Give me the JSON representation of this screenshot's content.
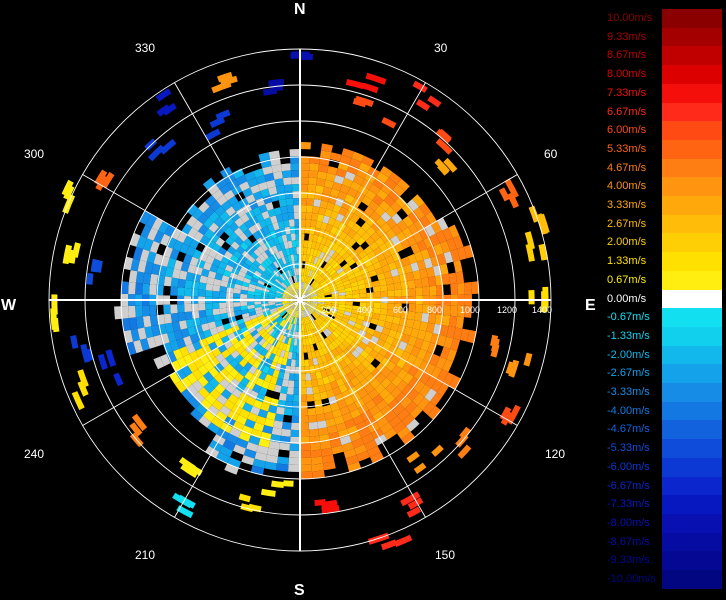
{
  "compass": {
    "n": "N",
    "e": "E",
    "s": "S",
    "w": "W"
  },
  "bearings": {
    "b30": "30",
    "b60": "60",
    "b120": "120",
    "b150": "150",
    "b210": "210",
    "b240": "240",
    "b300": "300",
    "b330": "330"
  },
  "range_labels": [
    "200",
    "400",
    "600",
    "800",
    "1000",
    "1200",
    "1400"
  ],
  "legend": [
    {
      "label": "10.00m/s",
      "color": "#8a0000"
    },
    {
      "label": "9.33m/s",
      "color": "#a50000"
    },
    {
      "label": "8.67m/s",
      "color": "#c00000"
    },
    {
      "label": "8.00m/s",
      "color": "#dc0000"
    },
    {
      "label": "7.33m/s",
      "color": "#f50f0a"
    },
    {
      "label": "6.67m/s",
      "color": "#ff2a1a"
    },
    {
      "label": "6.00m/s",
      "color": "#ff4a14"
    },
    {
      "label": "5.33m/s",
      "color": "#ff6412"
    },
    {
      "label": "4.67m/s",
      "color": "#ff7e14"
    },
    {
      "label": "4.00m/s",
      "color": "#ff9410"
    },
    {
      "label": "3.33m/s",
      "color": "#ffa80c"
    },
    {
      "label": "2.67m/s",
      "color": "#ffbc08"
    },
    {
      "label": "2.00m/s",
      "color": "#ffcf06"
    },
    {
      "label": "1.33m/s",
      "color": "#ffe000"
    },
    {
      "label": "0.67m/s",
      "color": "#ffee10"
    },
    {
      "label": "0.00m/s",
      "color": "#ffffff"
    },
    {
      "label": "-0.67m/s",
      "color": "#12e0f0"
    },
    {
      "label": "-1.33m/s",
      "color": "#10d0ee"
    },
    {
      "label": "-2.00m/s",
      "color": "#12b8ec"
    },
    {
      "label": "-2.67m/s",
      "color": "#14a2ea"
    },
    {
      "label": "-3.33m/s",
      "color": "#168ce6"
    },
    {
      "label": "-4.00m/s",
      "color": "#1478e2"
    },
    {
      "label": "-4.67m/s",
      "color": "#1262de"
    },
    {
      "label": "-5.33m/s",
      "color": "#104cda"
    },
    {
      "label": "-6.00m/s",
      "color": "#0c38d4"
    },
    {
      "label": "-6.67m/s",
      "color": "#0a26cc"
    },
    {
      "label": "-7.33m/s",
      "color": "#0818c0"
    },
    {
      "label": "-8.00m/s",
      "color": "#0810b2"
    },
    {
      "label": "-8.67m/s",
      "color": "#060ca2"
    },
    {
      "label": "-9.33m/s",
      "color": "#040892"
    },
    {
      "label": "-10.00m/s",
      "color": "#020680"
    }
  ],
  "colors": {
    "background": "#000000",
    "grid": "#ffffff",
    "nodata": "#cfcfcf"
  }
}
